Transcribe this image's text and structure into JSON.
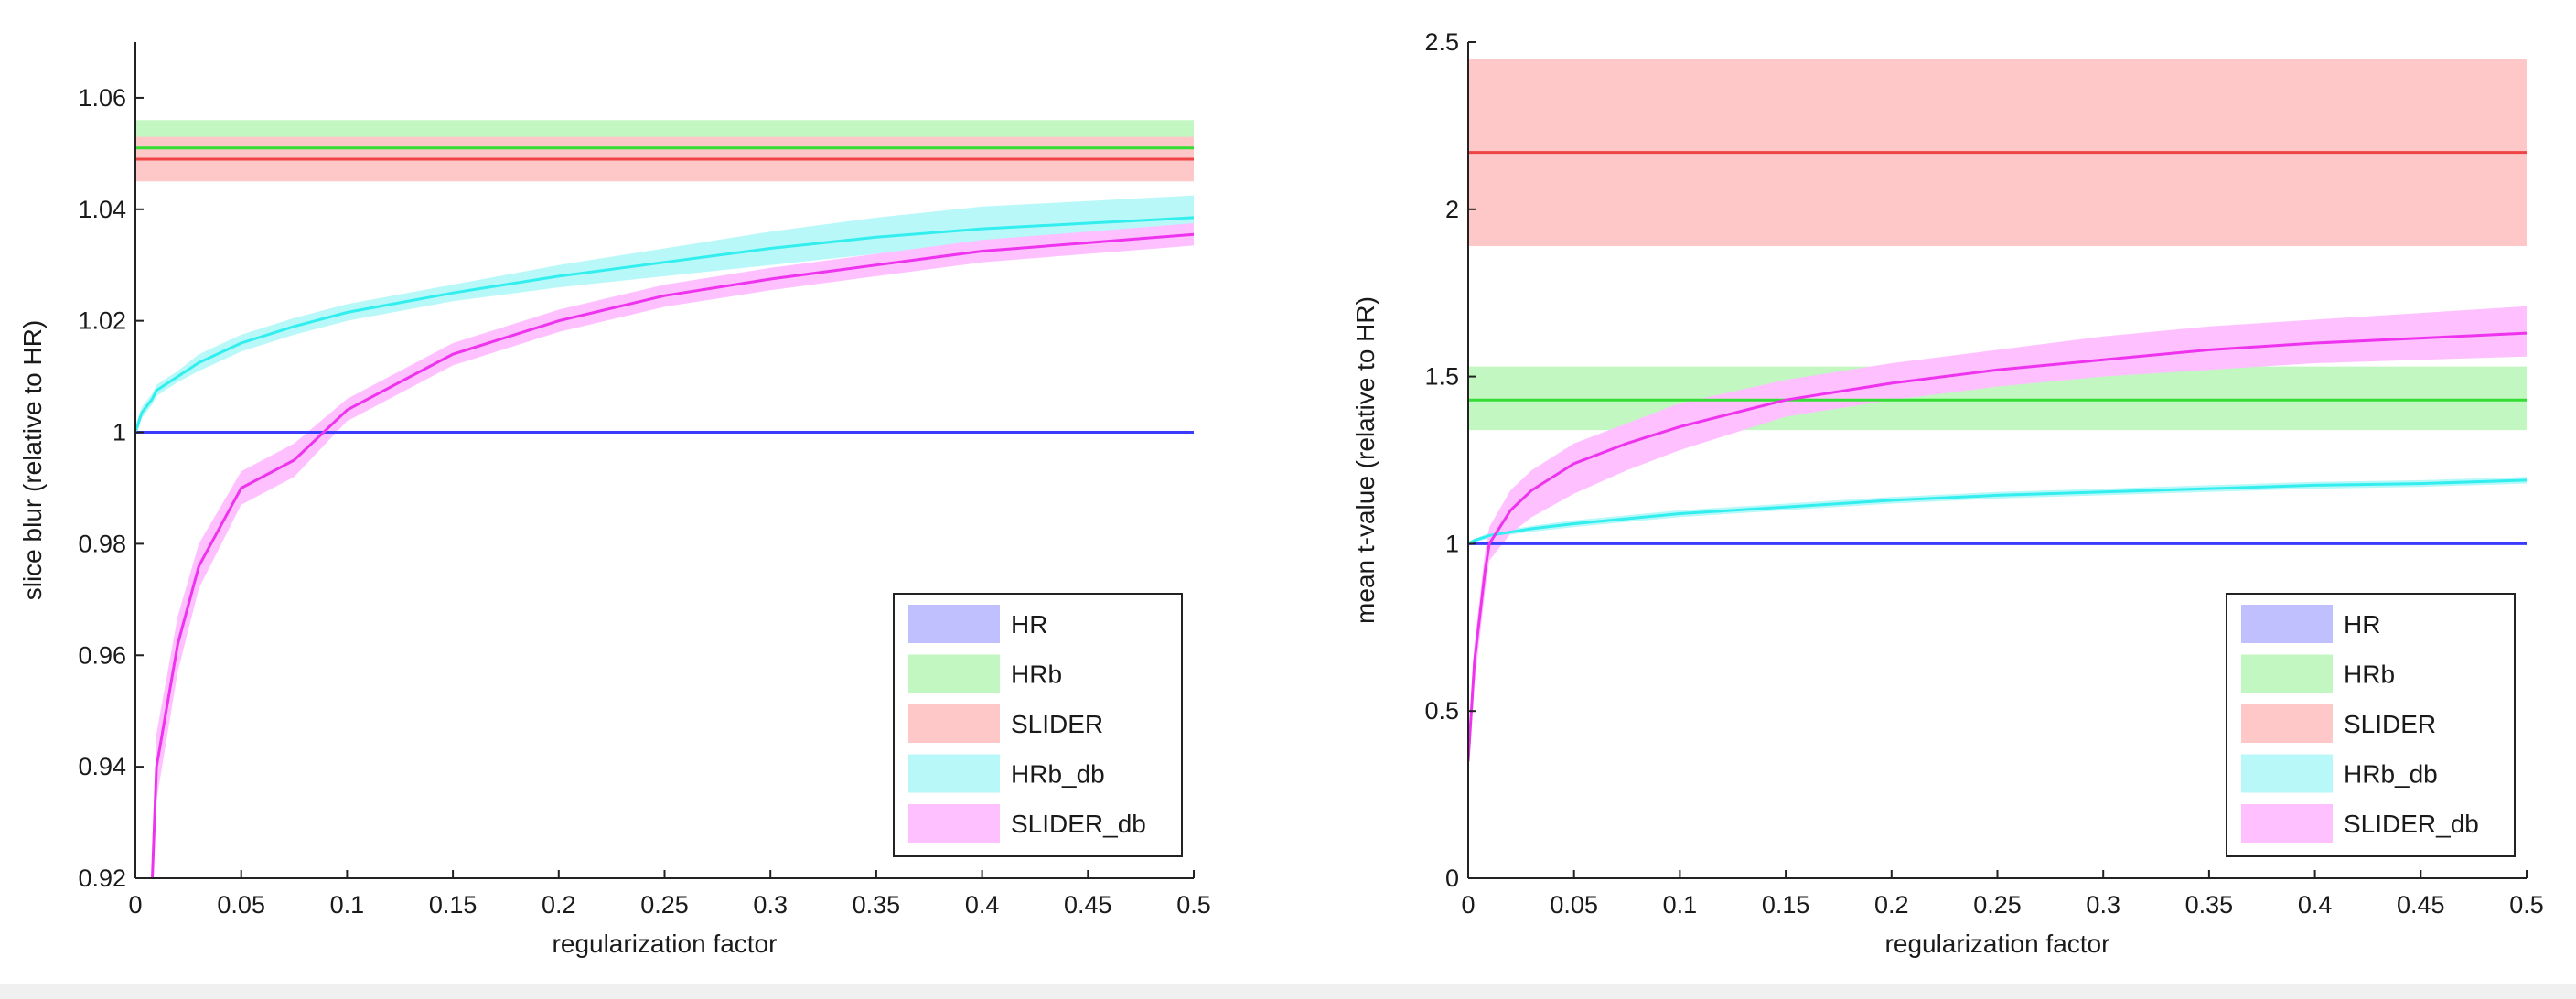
{
  "chart_data": [
    {
      "type": "line",
      "xlabel": "regularization factor",
      "ylabel": "slice blur (relative to HR)",
      "xlim": [
        0,
        0.5
      ],
      "ylim": [
        0.92,
        1.07
      ],
      "xticks": [
        0,
        0.05,
        0.1,
        0.15,
        0.2,
        0.25,
        0.3,
        0.35,
        0.4,
        0.45,
        0.5
      ],
      "xtick_labels": [
        "0",
        "0.05",
        "0.1",
        "0.15",
        "0.2",
        "0.25",
        "0.3",
        "0.35",
        "0.4",
        "0.45",
        "0.5"
      ],
      "yticks": [
        0.92,
        0.94,
        0.96,
        0.98,
        1,
        1.02,
        1.04,
        1.06
      ],
      "ytick_labels": [
        "0.92",
        "0.94",
        "0.96",
        "0.98",
        "1",
        "1.02",
        "1.04",
        "1.06"
      ],
      "grid": false,
      "legend_position": "bottom-right",
      "x": [
        0,
        0.003,
        0.008,
        0.01,
        0.02,
        0.03,
        0.05,
        0.075,
        0.1,
        0.15,
        0.2,
        0.25,
        0.3,
        0.35,
        0.4,
        0.45,
        0.5
      ],
      "series": [
        {
          "name": "HR",
          "color": "#3b3bff",
          "band": "#c0c0ff",
          "values": [
            1,
            1,
            1,
            1,
            1,
            1,
            1,
            1,
            1,
            1,
            1,
            1,
            1,
            1,
            1,
            1,
            1
          ],
          "lower": null,
          "upper": null
        },
        {
          "name": "HRb",
          "color": "#33dd33",
          "band": "#c2f7c2",
          "values": [
            1.051,
            1.051,
            1.051,
            1.051,
            1.051,
            1.051,
            1.051,
            1.051,
            1.051,
            1.051,
            1.051,
            1.051,
            1.051,
            1.051,
            1.051,
            1.051,
            1.051
          ],
          "lower": [
            1.046,
            1.046,
            1.046,
            1.046,
            1.046,
            1.046,
            1.046,
            1.046,
            1.046,
            1.046,
            1.046,
            1.046,
            1.046,
            1.046,
            1.046,
            1.046,
            1.046
          ],
          "upper": [
            1.056,
            1.056,
            1.056,
            1.056,
            1.056,
            1.056,
            1.056,
            1.056,
            1.056,
            1.056,
            1.056,
            1.056,
            1.056,
            1.056,
            1.056,
            1.056,
            1.056
          ]
        },
        {
          "name": "SLIDER",
          "color": "#ee4444",
          "band": "#ffc8c8",
          "values": [
            1.049,
            1.049,
            1.049,
            1.049,
            1.049,
            1.049,
            1.049,
            1.049,
            1.049,
            1.049,
            1.049,
            1.049,
            1.049,
            1.049,
            1.049,
            1.049,
            1.049
          ],
          "lower": [
            1.045,
            1.045,
            1.045,
            1.045,
            1.045,
            1.045,
            1.045,
            1.045,
            1.045,
            1.045,
            1.045,
            1.045,
            1.045,
            1.045,
            1.045,
            1.045,
            1.045
          ],
          "upper": [
            1.053,
            1.053,
            1.053,
            1.053,
            1.053,
            1.053,
            1.053,
            1.053,
            1.053,
            1.053,
            1.053,
            1.053,
            1.053,
            1.053,
            1.053,
            1.053,
            1.053
          ]
        },
        {
          "name": "HRb_db",
          "color": "#33eeee",
          "band": "#b8f8f8",
          "values": [
            1,
            1.0035,
            1.006,
            1.0075,
            1.01,
            1.0125,
            1.016,
            1.019,
            1.0215,
            1.025,
            1.028,
            1.0305,
            1.033,
            1.035,
            1.0365,
            1.0375,
            1.0385
          ],
          "lower": [
            0.999,
            1.0025,
            1.005,
            1.0065,
            1.009,
            1.011,
            1.0145,
            1.0175,
            1.02,
            1.0235,
            1.026,
            1.028,
            1.03,
            1.032,
            1.0335,
            1.0345,
            1.0355
          ],
          "upper": [
            1.001,
            1.0045,
            1.007,
            1.0085,
            1.011,
            1.014,
            1.0175,
            1.0205,
            1.023,
            1.0265,
            1.03,
            1.033,
            1.036,
            1.0385,
            1.0405,
            1.0415,
            1.0425
          ]
        },
        {
          "name": "SLIDER_db",
          "color": "#ee33ee",
          "band": "#ffc0ff",
          "values": [
            null,
            null,
            0.92,
            0.94,
            0.962,
            0.976,
            0.99,
            0.995,
            1.004,
            1.014,
            1.02,
            1.0245,
            1.0275,
            1.03,
            1.0325,
            1.034,
            1.0355
          ],
          "lower": [
            null,
            null,
            0.92,
            0.934,
            0.957,
            0.972,
            0.987,
            0.992,
            1.002,
            1.012,
            1.018,
            1.0225,
            1.0255,
            1.028,
            1.0305,
            1.032,
            1.0335
          ],
          "upper": [
            null,
            null,
            0.925,
            0.946,
            0.967,
            0.98,
            0.993,
            0.998,
            1.006,
            1.016,
            1.022,
            1.0265,
            1.0295,
            1.032,
            1.0345,
            1.036,
            1.0375
          ]
        }
      ]
    },
    {
      "type": "line",
      "xlabel": "regularization factor",
      "ylabel": "mean t-value (relative to HR)",
      "xlim": [
        0,
        0.5
      ],
      "ylim": [
        0,
        2.5
      ],
      "xticks": [
        0,
        0.05,
        0.1,
        0.15,
        0.2,
        0.25,
        0.3,
        0.35,
        0.4,
        0.45,
        0.5
      ],
      "xtick_labels": [
        "0",
        "0.05",
        "0.1",
        "0.15",
        "0.2",
        "0.25",
        "0.3",
        "0.35",
        "0.4",
        "0.45",
        "0.5"
      ],
      "yticks": [
        0,
        0.5,
        1,
        1.5,
        2,
        2.5
      ],
      "ytick_labels": [
        "0",
        "0.5",
        "1",
        "1.5",
        "2",
        "2.5"
      ],
      "grid": false,
      "legend_position": "bottom-right",
      "x": [
        0,
        0.003,
        0.008,
        0.01,
        0.02,
        0.03,
        0.05,
        0.075,
        0.1,
        0.15,
        0.2,
        0.25,
        0.3,
        0.35,
        0.4,
        0.45,
        0.5
      ],
      "series": [
        {
          "name": "HR",
          "color": "#3b3bff",
          "band": "#c0c0ff",
          "values": [
            1,
            1,
            1,
            1,
            1,
            1,
            1,
            1,
            1,
            1,
            1,
            1,
            1,
            1,
            1,
            1,
            1
          ],
          "lower": null,
          "upper": null
        },
        {
          "name": "HRb",
          "color": "#33dd33",
          "band": "#c2f7c2",
          "values": [
            1.43,
            1.43,
            1.43,
            1.43,
            1.43,
            1.43,
            1.43,
            1.43,
            1.43,
            1.43,
            1.43,
            1.43,
            1.43,
            1.43,
            1.43,
            1.43,
            1.43
          ],
          "lower": [
            1.34,
            1.34,
            1.34,
            1.34,
            1.34,
            1.34,
            1.34,
            1.34,
            1.34,
            1.34,
            1.34,
            1.34,
            1.34,
            1.34,
            1.34,
            1.34,
            1.34
          ],
          "upper": [
            1.53,
            1.53,
            1.53,
            1.53,
            1.53,
            1.53,
            1.53,
            1.53,
            1.53,
            1.53,
            1.53,
            1.53,
            1.53,
            1.53,
            1.53,
            1.53,
            1.53
          ]
        },
        {
          "name": "SLIDER",
          "color": "#ee4444",
          "band": "#ffc8c8",
          "values": [
            2.17,
            2.17,
            2.17,
            2.17,
            2.17,
            2.17,
            2.17,
            2.17,
            2.17,
            2.17,
            2.17,
            2.17,
            2.17,
            2.17,
            2.17,
            2.17,
            2.17
          ],
          "lower": [
            1.89,
            1.89,
            1.89,
            1.89,
            1.89,
            1.89,
            1.89,
            1.89,
            1.89,
            1.89,
            1.89,
            1.89,
            1.89,
            1.89,
            1.89,
            1.89,
            1.89
          ],
          "upper": [
            2.45,
            2.45,
            2.45,
            2.45,
            2.45,
            2.45,
            2.45,
            2.45,
            2.45,
            2.45,
            2.45,
            2.45,
            2.45,
            2.45,
            2.45,
            2.45,
            2.45
          ]
        },
        {
          "name": "HRb_db",
          "color": "#33eeee",
          "band": "#b8f8f8",
          "values": [
            1,
            1.01,
            1.02,
            1.025,
            1.035,
            1.045,
            1.06,
            1.075,
            1.09,
            1.11,
            1.13,
            1.145,
            1.155,
            1.165,
            1.175,
            1.18,
            1.19
          ],
          "lower": [
            0.995,
            1.005,
            1.013,
            1.017,
            1.027,
            1.036,
            1.05,
            1.065,
            1.08,
            1.1,
            1.12,
            1.135,
            1.145,
            1.155,
            1.165,
            1.17,
            1.18
          ],
          "upper": [
            1.005,
            1.015,
            1.027,
            1.033,
            1.043,
            1.054,
            1.07,
            1.085,
            1.1,
            1.12,
            1.14,
            1.155,
            1.165,
            1.175,
            1.185,
            1.19,
            1.2
          ]
        },
        {
          "name": "SLIDER_db",
          "color": "#ee33ee",
          "band": "#ffc0ff",
          "values": [
            0.35,
            0.65,
            0.92,
            1.0,
            1.1,
            1.16,
            1.24,
            1.3,
            1.35,
            1.43,
            1.48,
            1.52,
            1.55,
            1.58,
            1.6,
            1.615,
            1.63
          ],
          "lower": [
            0.3,
            0.58,
            0.86,
            0.95,
            1.03,
            1.08,
            1.15,
            1.22,
            1.28,
            1.38,
            1.43,
            1.47,
            1.5,
            1.52,
            1.54,
            1.55,
            1.56
          ],
          "upper": [
            0.4,
            0.7,
            0.98,
            1.05,
            1.16,
            1.22,
            1.3,
            1.36,
            1.42,
            1.49,
            1.54,
            1.58,
            1.62,
            1.65,
            1.67,
            1.69,
            1.71
          ]
        }
      ]
    }
  ]
}
